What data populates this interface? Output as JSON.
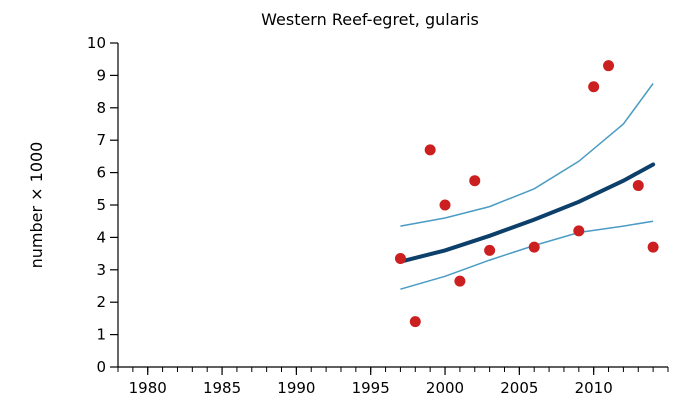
{
  "chart_data": {
    "type": "scatter",
    "title": "Western Reef-egret, gularis",
    "xlabel": "",
    "ylabel": "number × 1000",
    "xlim": [
      1978,
      2015
    ],
    "ylim": [
      0,
      10
    ],
    "x_ticks": [
      1980,
      1985,
      1990,
      1995,
      2000,
      2005,
      2010
    ],
    "y_ticks": [
      0,
      1,
      2,
      3,
      4,
      5,
      6,
      7,
      8,
      9,
      10
    ],
    "grid": false,
    "colors": {
      "points": "#cc1f1f",
      "trend": "#0d3f6b",
      "confidence": "#4a9cc4"
    },
    "points": [
      {
        "x": 1997,
        "y": 3.35
      },
      {
        "x": 1998,
        "y": 1.4
      },
      {
        "x": 1999,
        "y": 6.7
      },
      {
        "x": 2000,
        "y": 5.0
      },
      {
        "x": 2001,
        "y": 2.65
      },
      {
        "x": 2002,
        "y": 5.75
      },
      {
        "x": 2003,
        "y": 3.6
      },
      {
        "x": 2006,
        "y": 3.7
      },
      {
        "x": 2009,
        "y": 4.2
      },
      {
        "x": 2010,
        "y": 8.65
      },
      {
        "x": 2011,
        "y": 9.3
      },
      {
        "x": 2013,
        "y": 5.6
      },
      {
        "x": 2014,
        "y": 3.7
      }
    ],
    "trend": {
      "x": [
        1997,
        2000,
        2003,
        2006,
        2009,
        2012,
        2014
      ],
      "y": [
        3.25,
        3.6,
        4.05,
        4.55,
        5.1,
        5.75,
        6.25
      ]
    },
    "upper": {
      "x": [
        1997,
        2000,
        2003,
        2006,
        2009,
        2012,
        2014
      ],
      "y": [
        4.35,
        4.6,
        4.95,
        5.5,
        6.35,
        7.5,
        8.75
      ]
    },
    "lower": {
      "x": [
        1997,
        2000,
        2003,
        2006,
        2009,
        2012,
        2014
      ],
      "y": [
        2.4,
        2.8,
        3.3,
        3.75,
        4.15,
        4.35,
        4.5
      ]
    }
  }
}
